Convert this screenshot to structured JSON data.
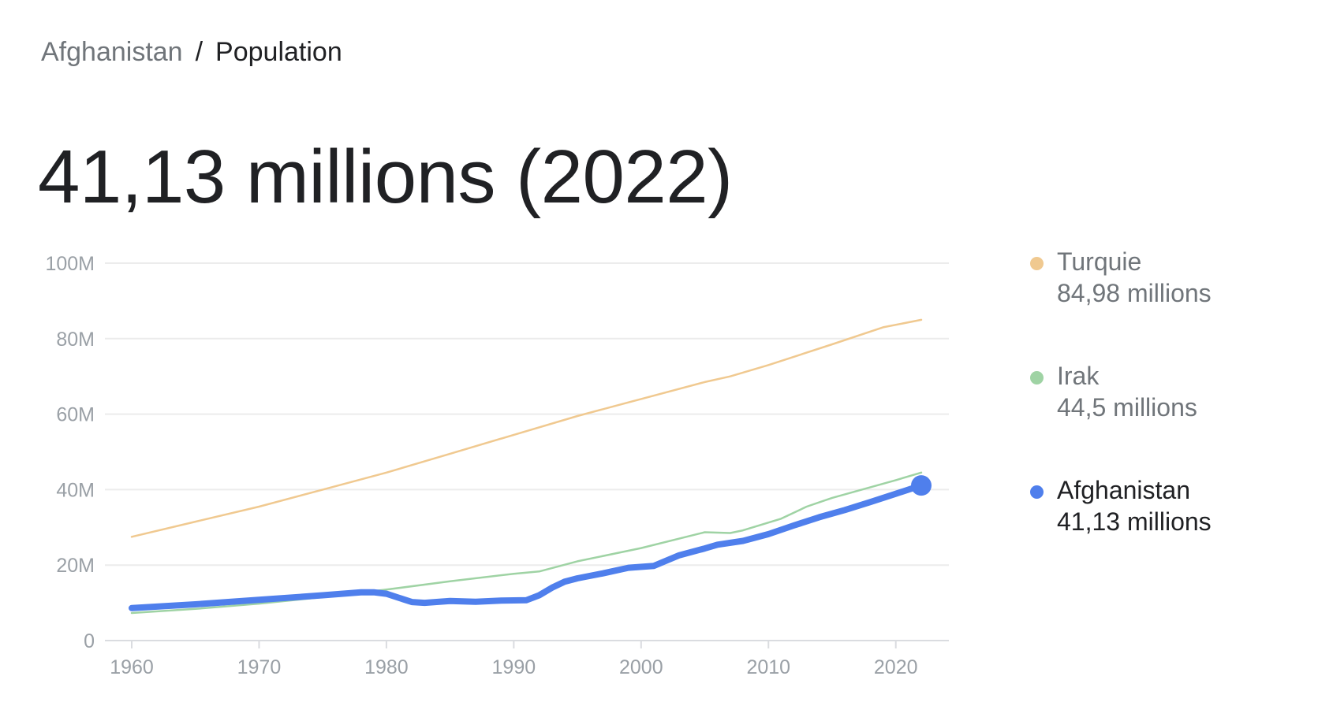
{
  "breadcrumb": {
    "parent": "Afghanistan",
    "separator": "/",
    "current": "Population"
  },
  "headline": "41,13 millions (2022)",
  "legend": [
    {
      "name": "Turquie",
      "value": "84,98 millions",
      "color": "#f0c990",
      "active": false
    },
    {
      "name": "Irak",
      "value": "44,5 millions",
      "color": "#9fd3a4",
      "active": false
    },
    {
      "name": "Afghanistan",
      "value": "41,13 millions",
      "color": "#4f7fec",
      "active": true
    }
  ],
  "chart_data": {
    "type": "line",
    "xlim": [
      1960,
      2022
    ],
    "ylim": [
      0,
      100
    ],
    "grid": true,
    "legend_position": "right",
    "x_ticks": [
      1960,
      1970,
      1980,
      1990,
      2000,
      2010,
      2020
    ],
    "y_ticks": [
      {
        "value": 0,
        "label": "0"
      },
      {
        "value": 20,
        "label": "20M"
      },
      {
        "value": 40,
        "label": "40M"
      },
      {
        "value": 60,
        "label": "60M"
      },
      {
        "value": 80,
        "label": "80M"
      },
      {
        "value": 100,
        "label": "100M"
      }
    ],
    "series": [
      {
        "name": "Turquie",
        "color": "#f0c990",
        "points": [
          [
            1960,
            27.5
          ],
          [
            1965,
            31.5
          ],
          [
            1970,
            35.5
          ],
          [
            1975,
            40
          ],
          [
            1980,
            44.5
          ],
          [
            1985,
            49.5
          ],
          [
            1990,
            54.5
          ],
          [
            1995,
            59.5
          ],
          [
            2000,
            64
          ],
          [
            2005,
            68.5
          ],
          [
            2007,
            70
          ],
          [
            2010,
            73
          ],
          [
            2015,
            78.5
          ],
          [
            2019,
            83
          ],
          [
            2022,
            85
          ]
        ]
      },
      {
        "name": "Irak",
        "color": "#9fd3a4",
        "points": [
          [
            1960,
            7.3
          ],
          [
            1965,
            8.4
          ],
          [
            1970,
            9.8
          ],
          [
            1975,
            11.5
          ],
          [
            1980,
            13.5
          ],
          [
            1985,
            15.7
          ],
          [
            1990,
            17.7
          ],
          [
            1992,
            18.3
          ],
          [
            1995,
            21
          ],
          [
            2000,
            24.5
          ],
          [
            2005,
            28.7
          ],
          [
            2007,
            28.5
          ],
          [
            2008,
            29.2
          ],
          [
            2011,
            32.3
          ],
          [
            2013,
            35.5
          ],
          [
            2015,
            37.8
          ],
          [
            2020,
            42.5
          ],
          [
            2022,
            44.5
          ]
        ]
      },
      {
        "name": "Afghanistan",
        "color": "#4f7fec",
        "points": [
          [
            1960,
            8.6
          ],
          [
            1965,
            9.6
          ],
          [
            1970,
            10.8
          ],
          [
            1975,
            12
          ],
          [
            1978,
            12.8
          ],
          [
            1979,
            12.8
          ],
          [
            1980,
            12.4
          ],
          [
            1982,
            10.2
          ],
          [
            1983,
            10
          ],
          [
            1985,
            10.5
          ],
          [
            1987,
            10.3
          ],
          [
            1989,
            10.6
          ],
          [
            1991,
            10.7
          ],
          [
            1992,
            12
          ],
          [
            1993,
            14
          ],
          [
            1994,
            15.6
          ],
          [
            1995,
            16.5
          ],
          [
            1997,
            17.8
          ],
          [
            1999,
            19.3
          ],
          [
            2001,
            19.8
          ],
          [
            2003,
            22.6
          ],
          [
            2005,
            24.4
          ],
          [
            2006,
            25.4
          ],
          [
            2008,
            26.4
          ],
          [
            2010,
            28.2
          ],
          [
            2012,
            30.5
          ],
          [
            2014,
            32.7
          ],
          [
            2016,
            34.6
          ],
          [
            2018,
            36.7
          ],
          [
            2020,
            38.9
          ],
          [
            2022,
            41.1
          ]
        ]
      }
    ],
    "highlight": {
      "series": "Afghanistan",
      "x": 2022,
      "y": 41.1
    }
  }
}
